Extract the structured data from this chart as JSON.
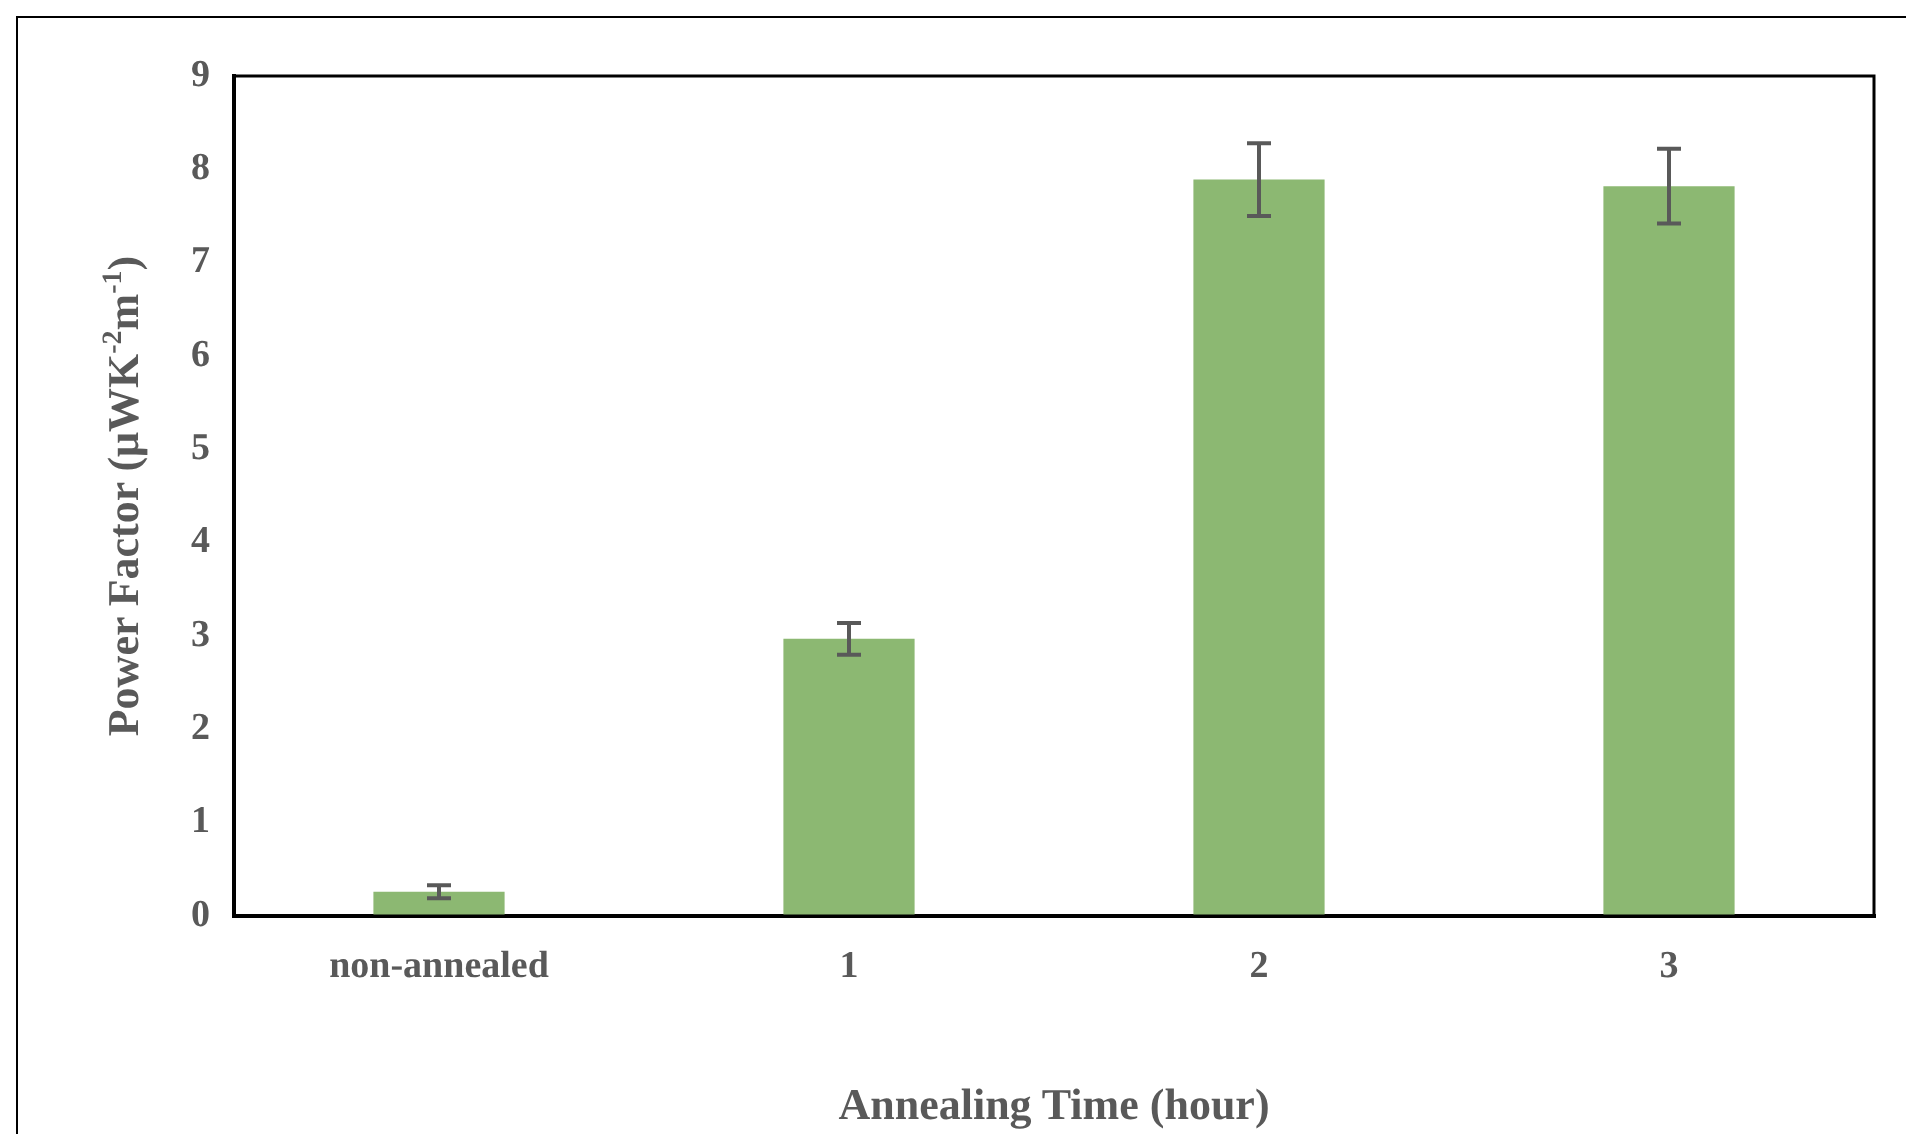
{
  "chart_data": {
    "type": "bar",
    "xlabel": "Annealing Time (hour)",
    "ylabel": "Power Factor (μWK$^{-2}$m$^{-1}$)",
    "categories": [
      "non-annealed",
      "1",
      "2",
      "3"
    ],
    "values": [
      0.26,
      2.97,
      7.89,
      7.82
    ],
    "errors": [
      0.07,
      0.17,
      0.39,
      0.4
    ],
    "color": "#8cb872",
    "ylim": [
      0,
      9
    ],
    "yticks": [
      0,
      1,
      2,
      3,
      4,
      5,
      6,
      7,
      8,
      9
    ],
    "grid": false,
    "legend": false
  }
}
